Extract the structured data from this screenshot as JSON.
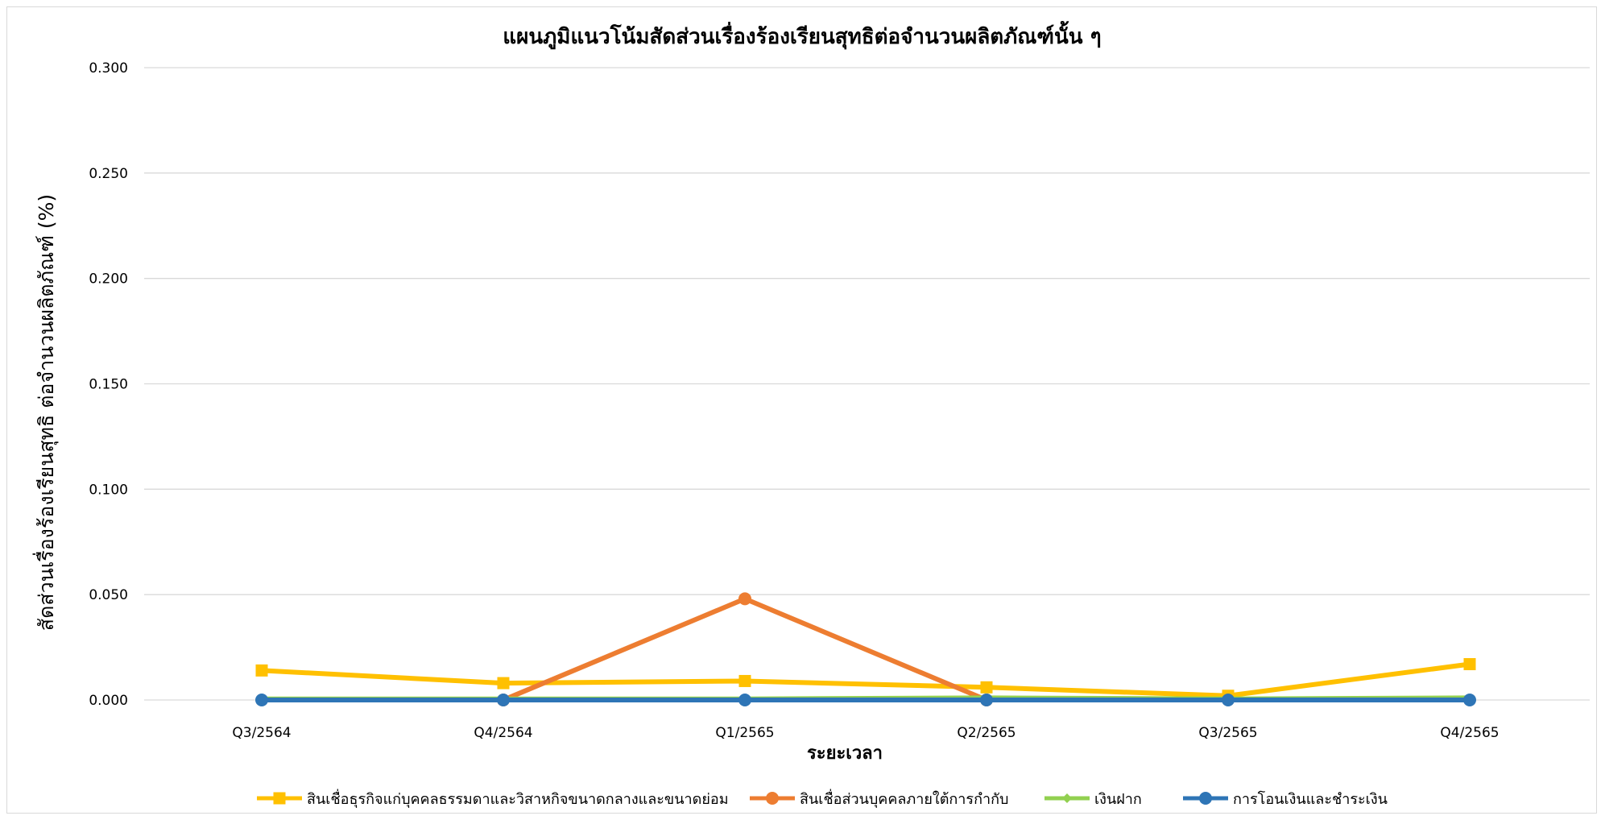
{
  "chart_data": {
    "type": "line",
    "title": "แผนภูมิแนวโน้มสัดส่วนเรื่องร้องเรียนสุทธิต่อจำนวนผลิตภัณฑ์นั้น ๆ",
    "xlabel": "ระยะเวลา",
    "ylabel": "สัดส่วนเรื่องร้องเรียนสุทธิ ต่อจำนวนผลิตภัณฑ์ (%)",
    "categories": [
      "Q3/2564",
      "Q4/2564",
      "Q1/2565",
      "Q2/2565",
      "Q3/2565",
      "Q4/2565"
    ],
    "ylim": [
      0,
      0.3
    ],
    "yticks": [
      "0.000",
      "0.050",
      "0.100",
      "0.150",
      "0.200",
      "0.250",
      "0.300"
    ],
    "ytick_values": [
      0,
      0.05,
      0.1,
      0.15,
      0.2,
      0.25,
      0.3
    ],
    "grid": true,
    "legend_position": "bottom",
    "series": [
      {
        "name": "สินเชื่อธุรกิจแก่บุคคลธรรมดาและวิสาหกิจขนาดกลางและขนาดย่อม",
        "color": "#FFC000",
        "marker": "square",
        "values": [
          0.014,
          0.008,
          0.009,
          0.006,
          0.002,
          0.017
        ]
      },
      {
        "name": "สินเชื่อส่วนบุคคลภายใต้การกำกับ",
        "color": "#ED7D31",
        "marker": "circle",
        "values": [
          null,
          0.0,
          0.048,
          0.0,
          null,
          null
        ]
      },
      {
        "name": "เงินฝาก",
        "color": "#92D050",
        "marker": "diamond",
        "values": [
          0.0005,
          0.0005,
          0.0005,
          0.001,
          0.0005,
          0.001
        ]
      },
      {
        "name": "การโอนเงินและชำระเงิน",
        "color": "#2E75B6",
        "marker": "circle",
        "values": [
          0.0,
          0.0,
          0.0,
          0.0,
          0.0,
          0.0
        ]
      }
    ]
  }
}
